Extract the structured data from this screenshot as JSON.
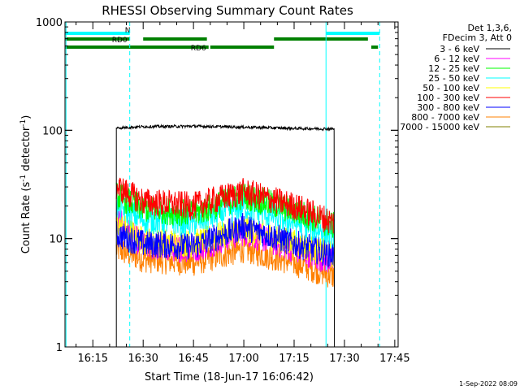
{
  "chart_data": {
    "type": "line",
    "title": "RHESSI Observing Summary Count Rates",
    "xlabel": "Start Time (18-Jun-17 16:06:42)",
    "ylabel": "Count Rate (s⁻¹ detector⁻¹)",
    "ylabel_parts": [
      "Count Rate (s",
      "-1",
      " detector",
      "-1",
      ")"
    ],
    "y_scale": "log",
    "ylim": [
      1,
      1000
    ],
    "xlim": [
      "16:06:42",
      "17:46:00"
    ],
    "xtick_labels": [
      "16:15",
      "16:30",
      "16:45",
      "17:00",
      "17:15",
      "17:30",
      "17:45"
    ],
    "ytick_labels": [
      "1",
      "10",
      "100",
      "1000"
    ],
    "legend_position": "top-right",
    "legend_header": [
      "Det 1,3,6,",
      "FDecim 3, Att 0"
    ],
    "footer_timestamp": "1-Sep-2022 08:09",
    "series": [
      {
        "name": "3 - 6 keV",
        "color": "#000000",
        "x": [
          "16:22",
          "16:30",
          "16:45",
          "17:00",
          "17:15",
          "17:27"
        ],
        "values": [
          105,
          108,
          109,
          107,
          104,
          103
        ]
      },
      {
        "name": "6 - 12 keV",
        "color": "#ff00ff",
        "x": [
          "16:22",
          "16:30",
          "16:45",
          "17:00",
          "17:15",
          "17:27"
        ],
        "values": [
          15,
          8.5,
          8,
          11.5,
          8,
          6
        ]
      },
      {
        "name": "12 - 25 keV",
        "color": "#00ff00",
        "x": [
          "16:22",
          "16:30",
          "16:45",
          "17:00",
          "17:15",
          "17:27"
        ],
        "values": [
          25,
          19,
          17,
          25,
          18,
          13
        ]
      },
      {
        "name": "25 - 50 keV",
        "color": "#00ffff",
        "x": [
          "16:22",
          "16:30",
          "16:45",
          "17:00",
          "17:15",
          "17:27"
        ],
        "values": [
          20,
          15,
          14,
          20,
          14,
          11
        ]
      },
      {
        "name": "50 - 100 keV",
        "color": "#ffff00",
        "x": [
          "16:22",
          "16:30",
          "16:45",
          "17:00",
          "17:15",
          "17:27"
        ],
        "values": [
          14,
          9.5,
          9,
          12.5,
          9,
          7
        ]
      },
      {
        "name": "100 - 300 keV",
        "color": "#ff0000",
        "x": [
          "16:22",
          "16:30",
          "16:45",
          "17:00",
          "17:15",
          "17:27"
        ],
        "values": [
          30,
          22,
          20,
          27,
          20,
          14
        ]
      },
      {
        "name": "300 - 800 keV",
        "color": "#0000ff",
        "x": [
          "16:22",
          "16:30",
          "16:45",
          "17:00",
          "17:15",
          "17:27"
        ],
        "values": [
          11,
          9,
          8.5,
          13,
          9,
          7
        ]
      },
      {
        "name": "800 - 7000 keV",
        "color": "#ff8000",
        "x": [
          "16:22",
          "16:30",
          "16:45",
          "17:00",
          "17:15",
          "17:27"
        ],
        "values": [
          8,
          6.5,
          6,
          8,
          6,
          4.5
        ]
      },
      {
        "name": "7000 - 15000 keV",
        "color": "#808000",
        "x": [],
        "values": []
      }
    ],
    "annotations": [
      {
        "label": "N",
        "color": "#00ffff",
        "start": "16:06:42",
        "end": "16:26:00"
      },
      {
        "label": "",
        "color": "#00ffff",
        "start": "17:24:30",
        "end": "17:40:30"
      },
      {
        "label": "RD0",
        "color": "#008000",
        "start": "16:06:42",
        "end": "16:26:00"
      },
      {
        "label": "",
        "color": "#008000",
        "start": "16:30:00",
        "end": "16:49:00"
      },
      {
        "label": "",
        "color": "#008000",
        "start": "17:09:00",
        "end": "17:37:00"
      },
      {
        "label": "RD6",
        "color": "#008000",
        "start": "16:06:42",
        "end": "16:49:30"
      },
      {
        "label": "",
        "color": "#008000",
        "start": "16:50:00",
        "end": "17:09:00"
      },
      {
        "label": "",
        "color": "#008000",
        "start": "17:38:00",
        "end": "17:40:00"
      }
    ]
  }
}
